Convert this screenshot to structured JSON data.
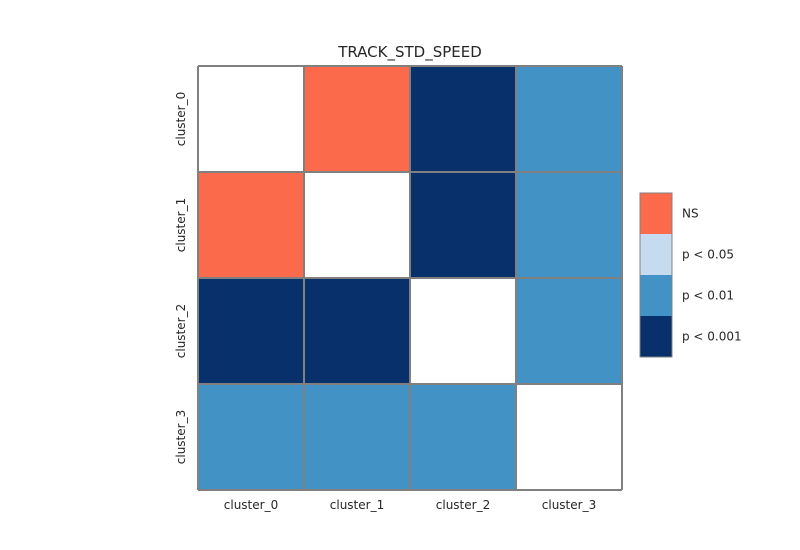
{
  "chart_data": {
    "type": "heatmap",
    "title": "TRACK_STD_SPEED",
    "x_categories": [
      "cluster_0",
      "cluster_1",
      "cluster_2",
      "cluster_3"
    ],
    "y_categories": [
      "cluster_0",
      "cluster_1",
      "cluster_2",
      "cluster_3"
    ],
    "cells": [
      [
        "diag",
        "NS",
        "p < 0.001",
        "p < 0.01"
      ],
      [
        "NS",
        "diag",
        "p < 0.001",
        "p < 0.01"
      ],
      [
        "p < 0.001",
        "p < 0.001",
        "diag",
        "p < 0.01"
      ],
      [
        "p < 0.01",
        "p < 0.01",
        "p < 0.01",
        "diag"
      ]
    ],
    "legend": {
      "position": "right",
      "entries": [
        {
          "label": "NS",
          "color": "#fb6a4a"
        },
        {
          "label": "p < 0.05",
          "color": "#c6dbef"
        },
        {
          "label": "p < 0.01",
          "color": "#4292c6"
        },
        {
          "label": "p < 0.001",
          "color": "#08306b"
        }
      ]
    },
    "diagonal_color": "#ffffff",
    "grid_line_color": "#808080"
  }
}
